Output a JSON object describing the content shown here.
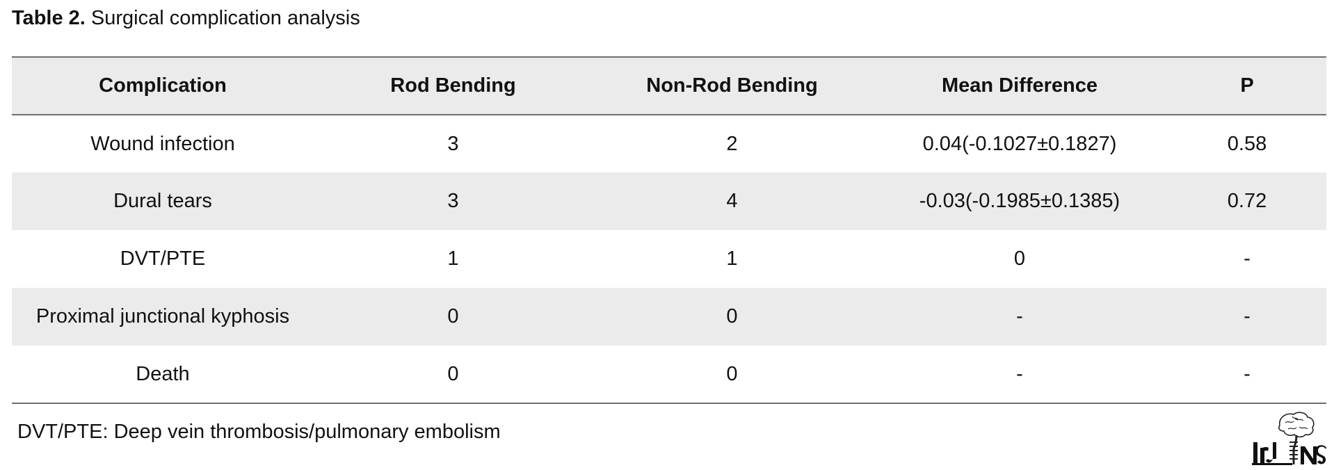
{
  "caption": {
    "label": "Table 2.",
    "title": "Surgical complication analysis"
  },
  "table": {
    "headers": [
      "Complication",
      "Rod Bending",
      "Non-Rod Bending",
      "Mean Difference",
      "P"
    ],
    "rows": [
      [
        "Wound infection",
        "3",
        "2",
        "0.04(-0.1027±0.1827)",
        "0.58"
      ],
      [
        "Dural tears",
        "3",
        "4",
        "-0.03(-0.1985±0.1385)",
        "0.72"
      ],
      [
        "DVT/PTE",
        "1",
        "1",
        "0",
        "-"
      ],
      [
        "Proximal junctional kyphosis",
        "0",
        "0",
        "-",
        "-"
      ],
      [
        "Death",
        "0",
        "0",
        "-",
        "-"
      ]
    ]
  },
  "footnote": "DVT/PTE: Deep vein thrombosis/pulmonary embolism",
  "logo": {
    "text": "IrJNS",
    "icon": "brain-spine-logo-icon"
  },
  "colors": {
    "header_bg": "#ebebeb",
    "stripe_bg": "#ebebeb",
    "rule": "#6e6e6e",
    "text": "#111111"
  }
}
